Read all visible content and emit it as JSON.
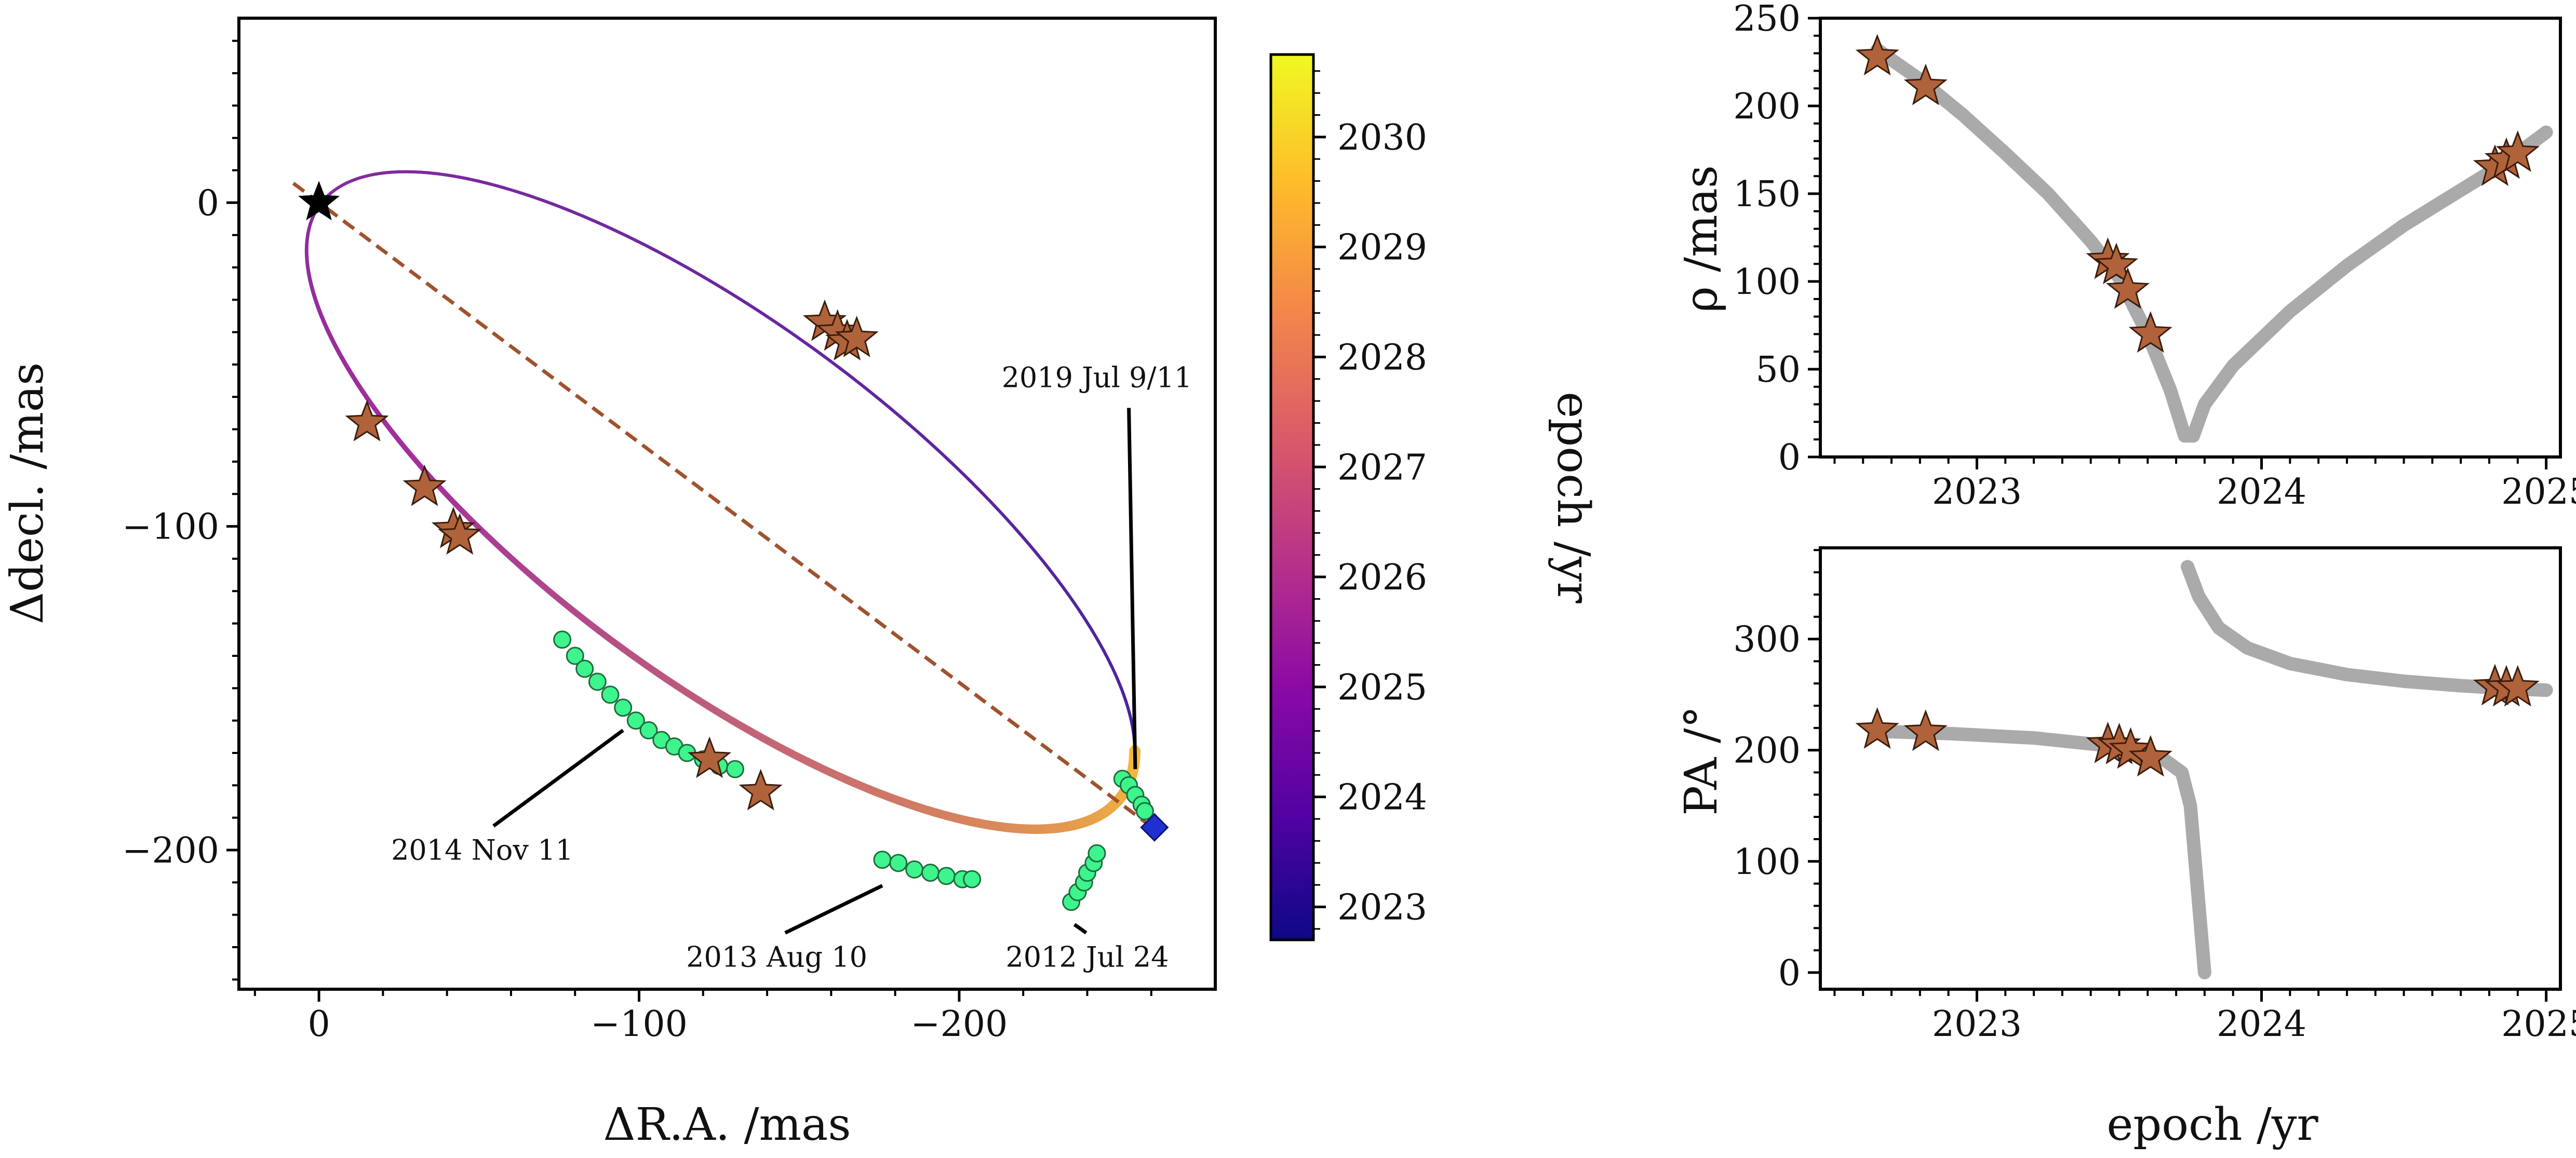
{
  "chart_data": [
    {
      "name": "orbit",
      "type": "scatter",
      "xlabel": "ΔR.A. /mas",
      "ylabel": "Δdecl. /mas",
      "xlim": [
        25,
        -280
      ],
      "ylim": [
        -243,
        57
      ],
      "x_ticks": [
        0,
        -100,
        -200
      ],
      "x_tick_labels": [
        "0",
        "−100",
        "−200"
      ],
      "y_ticks": [
        0,
        -100,
        -200
      ],
      "y_tick_labels": [
        "0",
        "−100",
        "−200"
      ],
      "orbit_ellipse": {
        "center": [
          -125.5,
          -92
        ],
        "semi_axes": [
          155,
          55
        ],
        "angle_deg": 36.1,
        "color_start": "#4522a0",
        "color_mid": "#a22f9c",
        "color_end": "#f8bb36",
        "width_start": 6,
        "width_end": 22
      },
      "line_of_nodes": {
        "from": [
          8,
          6
        ],
        "to": [
          -259,
          -192
        ],
        "color": "#a0522d",
        "style": "dashed"
      },
      "primary_star": {
        "x": 0,
        "y": 0,
        "color": "#000000"
      },
      "periastron_marker": {
        "x": -261,
        "y": -193,
        "color": "#1f2fd0"
      },
      "observed_points": [
        {
          "x": -15,
          "y": -68
        },
        {
          "x": -33,
          "y": -88
        },
        {
          "x": -42,
          "y": -101
        },
        {
          "x": -44,
          "y": -103
        },
        {
          "x": -158,
          "y": -37
        },
        {
          "x": -162,
          "y": -40
        },
        {
          "x": -165,
          "y": -43
        },
        {
          "x": -168,
          "y": -42
        },
        {
          "x": -122,
          "y": -172
        },
        {
          "x": -138,
          "y": -182
        }
      ],
      "historical_points": [
        {
          "x": -76,
          "y": -135
        },
        {
          "x": -80,
          "y": -140
        },
        {
          "x": -83,
          "y": -144
        },
        {
          "x": -87,
          "y": -148
        },
        {
          "x": -91,
          "y": -152
        },
        {
          "x": -95,
          "y": -156
        },
        {
          "x": -99,
          "y": -160
        },
        {
          "x": -103,
          "y": -163
        },
        {
          "x": -107,
          "y": -166
        },
        {
          "x": -111,
          "y": -168
        },
        {
          "x": -115,
          "y": -170
        },
        {
          "x": -120,
          "y": -172
        },
        {
          "x": -125,
          "y": -174
        },
        {
          "x": -130,
          "y": -175
        },
        {
          "x": -176,
          "y": -203
        },
        {
          "x": -181,
          "y": -204
        },
        {
          "x": -186,
          "y": -206
        },
        {
          "x": -191,
          "y": -207
        },
        {
          "x": -196,
          "y": -208
        },
        {
          "x": -201,
          "y": -209
        },
        {
          "x": -204,
          "y": -209
        },
        {
          "x": -235,
          "y": -216
        },
        {
          "x": -237,
          "y": -213
        },
        {
          "x": -239,
          "y": -210
        },
        {
          "x": -240,
          "y": -207
        },
        {
          "x": -242,
          "y": -204
        },
        {
          "x": -243,
          "y": -201
        },
        {
          "x": -251,
          "y": -178
        },
        {
          "x": -253,
          "y": -180
        },
        {
          "x": -255,
          "y": -183
        },
        {
          "x": -257,
          "y": -186
        },
        {
          "x": -258,
          "y": -188
        }
      ],
      "annotations": [
        {
          "text": "2019 Jul 9/11",
          "label_xy": [
            -243,
            -57
          ],
          "tip_xy": [
            -255,
            -175
          ]
        },
        {
          "text": "2014 Nov 11",
          "label_xy": [
            -51,
            -203
          ],
          "tip_xy": [
            -95,
            -163
          ]
        },
        {
          "text": "2013 Aug 10",
          "label_xy": [
            -143,
            -236
          ],
          "tip_xy": [
            -176,
            -211
          ]
        },
        {
          "text": "2012 Jul 24",
          "label_xy": [
            -240,
            -236
          ],
          "tip_xy": [
            -236,
            -223
          ]
        }
      ]
    },
    {
      "name": "colorbar",
      "type": "heatmap",
      "label": "epoch /yr",
      "range": [
        2022.7,
        2030.75
      ],
      "ticks": [
        2023,
        2024,
        2025,
        2026,
        2027,
        2028,
        2029,
        2030
      ],
      "tick_labels": [
        "2023",
        "2024",
        "2025",
        "2026",
        "2027",
        "2028",
        "2029",
        "2030"
      ],
      "colors": [
        "#0d0887",
        "#5302a3",
        "#8b0aa5",
        "#b83289",
        "#db5c68",
        "#f48849",
        "#febd2a",
        "#f0f921"
      ]
    },
    {
      "name": "separation",
      "type": "line",
      "ylabel": "ρ /mas",
      "xlim": [
        2022.45,
        2025.05
      ],
      "ylim": [
        0,
        250
      ],
      "x_ticks": [
        2023,
        2024,
        2025
      ],
      "x_tick_labels": [
        "2023",
        "2024",
        "2025"
      ],
      "y_ticks": [
        0,
        50,
        100,
        150,
        200,
        250
      ],
      "y_tick_labels": [
        "0",
        "50",
        "100",
        "150",
        "200",
        "250"
      ],
      "model_curve": {
        "color": "#aaaaaa",
        "x": [
          2022.65,
          2022.8,
          2022.95,
          2023.1,
          2023.25,
          2023.4,
          2023.5,
          2023.6,
          2023.68,
          2023.73,
          2023.76,
          2023.8,
          2023.9,
          2024.1,
          2024.3,
          2024.5,
          2024.7,
          2024.85,
          2025.0
        ],
        "y": [
          232,
          215,
          195,
          173,
          150,
          123,
          102,
          70,
          38,
          12,
          12,
          30,
          52,
          83,
          109,
          132,
          152,
          167,
          185
        ]
      },
      "observations": {
        "x": [
          2022.65,
          2022.82,
          2023.46,
          2023.49,
          2023.53,
          2023.61,
          2024.82,
          2024.86,
          2024.9
        ],
        "y": [
          228,
          211,
          112,
          109,
          95,
          70,
          165,
          169,
          173
        ]
      }
    },
    {
      "name": "position-angle",
      "type": "line",
      "xlabel": "epoch /yr",
      "ylabel": "PA /°",
      "xlim": [
        2022.45,
        2025.05
      ],
      "ylim": [
        -15,
        382
      ],
      "x_ticks": [
        2023,
        2024,
        2025
      ],
      "x_tick_labels": [
        "2023",
        "2024",
        "2025"
      ],
      "y_ticks": [
        0,
        100,
        200,
        300
      ],
      "y_tick_labels": [
        "0",
        "100",
        "200",
        "300"
      ],
      "model_curve_before": {
        "color": "#aaaaaa",
        "x": [
          2022.65,
          2022.9,
          2023.2,
          2023.5,
          2023.65,
          2023.72,
          2023.75,
          2023.77,
          2023.79,
          2023.8
        ],
        "y": [
          217,
          215,
          211,
          203,
          193,
          180,
          150,
          90,
          30,
          0
        ]
      },
      "model_curve_after": {
        "color": "#aaaaaa",
        "x": [
          2023.74,
          2023.78,
          2023.85,
          2023.95,
          2024.1,
          2024.3,
          2024.5,
          2024.7,
          2024.9,
          2025.0
        ],
        "y": [
          365,
          338,
          310,
          292,
          278,
          268,
          262,
          258,
          255,
          254
        ]
      },
      "observations": {
        "x": [
          2022.65,
          2022.82,
          2023.46,
          2023.5,
          2023.54,
          2023.61,
          2024.82,
          2024.86,
          2024.9
        ],
        "y": [
          218,
          216,
          205,
          204,
          200,
          193,
          257,
          256,
          256
        ]
      }
    }
  ]
}
